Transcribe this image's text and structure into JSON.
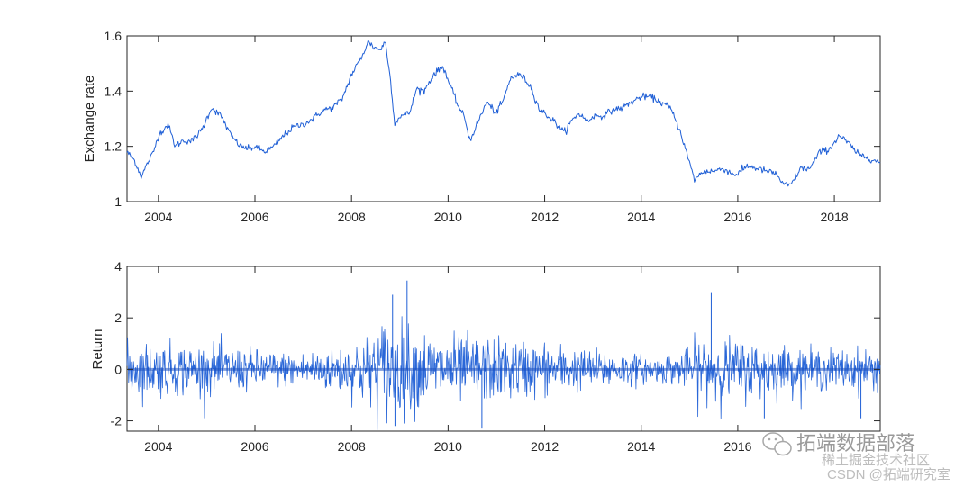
{
  "chart_data": [
    {
      "type": "line",
      "ylabel": "Exchange rate",
      "xlim": [
        2003.35,
        2018.95
      ],
      "ylim": [
        1.0,
        1.6
      ],
      "yticks": [
        1,
        1.2,
        1.4,
        1.6
      ],
      "ytick_labels": [
        "1",
        "1.2",
        "1.4",
        "1.6"
      ],
      "xticks": [
        2004,
        2006,
        2008,
        2010,
        2012,
        2014,
        2016,
        2018
      ],
      "xtick_labels": [
        "2004",
        "2006",
        "2008",
        "2010",
        "2012",
        "2014",
        "2016",
        "2018"
      ],
      "color": "#1f5fd6",
      "grid": false,
      "series": [
        {
          "x": [
            2003.35,
            2003.5,
            2003.65,
            2003.75,
            2003.9,
            2004.0,
            2004.2,
            2004.35,
            2004.5,
            2004.7,
            2004.9,
            2005.0,
            2005.1,
            2005.3,
            2005.5,
            2005.7,
            2005.9,
            2006.0,
            2006.2,
            2006.4,
            2006.6,
            2006.8,
            2007.0,
            2007.2,
            2007.4,
            2007.6,
            2007.8,
            2008.0,
            2008.2,
            2008.35,
            2008.45,
            2008.6,
            2008.7,
            2008.8,
            2008.9,
            2009.0,
            2009.2,
            2009.35,
            2009.5,
            2009.7,
            2009.9,
            2010.0,
            2010.2,
            2010.35,
            2010.45,
            2010.6,
            2010.8,
            2011.0,
            2011.15,
            2011.3,
            2011.5,
            2011.7,
            2011.9,
            2012.0,
            2012.2,
            2012.4,
            2012.55,
            2012.7,
            2012.9,
            2013.0,
            2013.2,
            2013.4,
            2013.6,
            2013.8,
            2014.0,
            2014.2,
            2014.4,
            2014.6,
            2014.8,
            2015.0,
            2015.1,
            2015.3,
            2015.5,
            2015.7,
            2015.9,
            2016.0,
            2016.2,
            2016.4,
            2016.6,
            2016.8,
            2016.95,
            2017.1,
            2017.3,
            2017.5,
            2017.7,
            2017.9,
            2018.1,
            2018.3,
            2018.5,
            2018.7,
            2018.95
          ],
          "y": [
            1.18,
            1.15,
            1.09,
            1.13,
            1.18,
            1.24,
            1.28,
            1.2,
            1.22,
            1.22,
            1.26,
            1.3,
            1.34,
            1.31,
            1.24,
            1.2,
            1.19,
            1.2,
            1.18,
            1.2,
            1.24,
            1.27,
            1.28,
            1.3,
            1.33,
            1.34,
            1.37,
            1.46,
            1.52,
            1.58,
            1.56,
            1.55,
            1.58,
            1.45,
            1.28,
            1.31,
            1.32,
            1.41,
            1.4,
            1.46,
            1.49,
            1.44,
            1.35,
            1.3,
            1.22,
            1.28,
            1.36,
            1.32,
            1.37,
            1.45,
            1.46,
            1.42,
            1.33,
            1.32,
            1.29,
            1.25,
            1.29,
            1.32,
            1.29,
            1.31,
            1.31,
            1.33,
            1.34,
            1.36,
            1.38,
            1.38,
            1.36,
            1.34,
            1.26,
            1.14,
            1.08,
            1.11,
            1.11,
            1.12,
            1.1,
            1.1,
            1.13,
            1.12,
            1.11,
            1.1,
            1.06,
            1.06,
            1.12,
            1.12,
            1.18,
            1.19,
            1.24,
            1.21,
            1.17,
            1.16,
            1.14
          ]
        }
      ]
    },
    {
      "type": "line",
      "ylabel": "Return",
      "xlim": [
        2003.35,
        2018.95
      ],
      "ylim": [
        -2.4,
        4.0
      ],
      "yticks": [
        -2,
        0,
        2,
        4
      ],
      "ytick_labels": [
        "-2",
        "0",
        "2",
        "4"
      ],
      "xticks": [
        2004,
        2006,
        2008,
        2010,
        2012,
        2014,
        2016
      ],
      "xtick_labels": [
        "2004",
        "2006",
        "2008",
        "2010",
        "2012",
        "2014",
        "2016"
      ],
      "color": "#1f5fd6",
      "grid": false,
      "series": [
        {
          "volatility_profile": {
            "x": [
              2003.35,
              2004.0,
              2005.0,
              2006.0,
              2006.8,
              2007.5,
              2008.0,
              2008.7,
              2009.2,
              2009.8,
              2010.4,
              2011.0,
              2012.0,
              2012.8,
              2013.5,
              2014.3,
              2014.9,
              2015.2,
              2015.8,
              2016.5,
              2017.5,
              2018.95
            ],
            "sigma": [
              0.6,
              0.6,
              0.55,
              0.45,
              0.35,
              0.5,
              0.6,
              1.15,
              0.95,
              0.75,
              0.75,
              0.7,
              0.6,
              0.45,
              0.4,
              0.28,
              0.4,
              0.75,
              0.7,
              0.6,
              0.45,
              0.45
            ]
          },
          "extremes": [
            {
              "x": 2008.85,
              "y": 2.9
            },
            {
              "x": 2009.15,
              "y": 3.45
            },
            {
              "x": 2008.9,
              "y": -2.2
            },
            {
              "x": 2010.7,
              "y": -2.3
            },
            {
              "x": 2015.45,
              "y": 3.0
            },
            {
              "x": 2016.55,
              "y": -1.9
            },
            {
              "x": 2018.55,
              "y": -1.9
            }
          ]
        }
      ]
    }
  ],
  "watermark": {
    "brand": "拓端数据部落",
    "line2": "稀土掘金技术社区",
    "line3": "CSDN @拓端研究室"
  }
}
